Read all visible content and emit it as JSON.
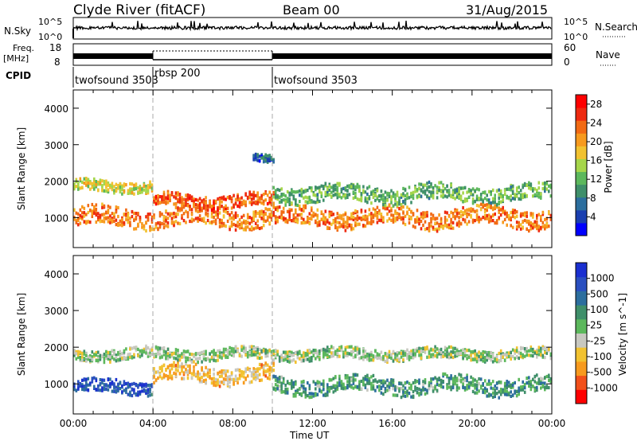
{
  "header": {
    "station": "Clyde River (fitACF)",
    "beam": "Beam 00",
    "date": "31/Aug/2015"
  },
  "top_panels": {
    "nsky_label": "N.Sky",
    "nsearch_label": "N.Search",
    "nsky_ticks": [
      "10^5",
      "10^0"
    ],
    "nsearch_ticks": [
      "10^5",
      "10^0"
    ],
    "freq_label_line1": "Freq.",
    "freq_label_line2": "[MHz]",
    "freq_ticks": [
      "18",
      "8"
    ],
    "nave_label": "Nave",
    "nave_ticks": [
      "60",
      "0"
    ],
    "cpid_label": "CPID",
    "cpid_segments": [
      {
        "label": "twofsound 3503",
        "start": 0,
        "end": 4
      },
      {
        "label": "rbsp 200",
        "start": 4,
        "end": 10
      },
      {
        "label": "twofsound 3503",
        "start": 10,
        "end": 24
      }
    ]
  },
  "chart_data": [
    {
      "type": "heatmap",
      "title": "",
      "xlabel": "Time UT",
      "ylabel": "Slant Range [km]",
      "x_ticks": [
        "00:00",
        "04:00",
        "08:00",
        "12:00",
        "16:00",
        "20:00",
        "00:00"
      ],
      "xlim": [
        0,
        24
      ],
      "y_ticks": [
        "1000",
        "2000",
        "3000",
        "4000"
      ],
      "ylim": [
        180,
        4500
      ],
      "colorbar": {
        "label": "Power [dB]",
        "ticks": [
          "4",
          "8",
          "12",
          "16",
          "20",
          "24",
          "28"
        ],
        "range": [
          0,
          30
        ],
        "colors": [
          "#0000ff",
          "#1a3fb0",
          "#2c6e9e",
          "#3f8f6a",
          "#5cb85c",
          "#a6d64a",
          "#f2c230",
          "#f79a1e",
          "#f26a14",
          "#ee2a10",
          "#ff0000"
        ]
      },
      "echo_bands": [
        {
          "start": 0,
          "end": 24,
          "center": 1050,
          "width": 500,
          "value": 22
        },
        {
          "start": 0,
          "end": 4,
          "center": 1900,
          "width": 300,
          "value": 16
        },
        {
          "start": 4,
          "end": 10,
          "center": 1500,
          "width": 350,
          "value": 24
        },
        {
          "start": 10,
          "end": 24,
          "center": 1700,
          "width": 450,
          "value": 12
        },
        {
          "start": 9,
          "end": 10,
          "center": 2700,
          "width": 200,
          "value": 6
        }
      ]
    },
    {
      "type": "heatmap",
      "title": "",
      "xlabel": "Time UT",
      "ylabel": "Slant Range [km]",
      "x_ticks": [
        "00:00",
        "04:00",
        "08:00",
        "12:00",
        "16:00",
        "20:00",
        "00:00"
      ],
      "xlim": [
        0,
        24
      ],
      "y_ticks": [
        "1000",
        "2000",
        "3000",
        "4000"
      ],
      "ylim": [
        180,
        4500
      ],
      "colorbar": {
        "label": "Velocity [m s^-1]",
        "ticks": [
          "1000",
          "500",
          "100",
          "25",
          "-25",
          "-100",
          "-500",
          "-1000"
        ],
        "range": [
          -1200,
          1200
        ],
        "colors": [
          "#ff0000",
          "#f2501a",
          "#f79a1e",
          "#f2c230",
          "#c8c8c0",
          "#5cb85c",
          "#3f8f6a",
          "#2c6e9e",
          "#2a4fc0",
          "#1a2fd0"
        ]
      },
      "echo_bands": [
        {
          "start": 0,
          "end": 4,
          "center": 950,
          "width": 350,
          "value": 800
        },
        {
          "start": 4,
          "end": 10,
          "center": 1300,
          "width": 450,
          "value": -400
        },
        {
          "start": 10,
          "end": 24,
          "center": 1000,
          "width": 450,
          "value": 300
        },
        {
          "start": 0,
          "end": 24,
          "center": 1850,
          "width": 300,
          "value": 0
        }
      ]
    }
  ]
}
